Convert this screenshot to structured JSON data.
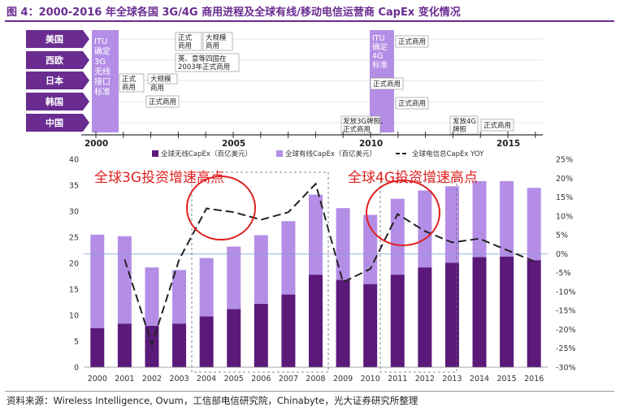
{
  "figure": {
    "title": "图 4：2000-2016 年全球各国 3G/4G 商用进程及全球有线/移动电信运营商 CapEx 变化情况",
    "source": "资料来源：Wireless Intelligence, Ovum，工信部电信研究院，Chinabyte，光大证券研究所整理"
  },
  "timeline": {
    "countries": [
      "美国",
      "西欧",
      "日本",
      "韩国",
      "中国"
    ],
    "year_labels": [
      "2000",
      "2005",
      "2010",
      "2015"
    ],
    "itu_3g": [
      "ITU",
      "确定",
      "3G",
      "无线",
      "接口",
      "标准"
    ],
    "itu_4g": [
      "ITU",
      "确定",
      "4G",
      "标准"
    ],
    "events_3g": {
      "us_a": [
        "正式",
        "商用"
      ],
      "us_b": [
        "大规模",
        "商用"
      ],
      "eu": [
        "英、意等四国在",
        "2003年正式商用"
      ],
      "jp_a": [
        "正式",
        "商用"
      ],
      "jp_b": "大规模",
      "jp_b2": "商用",
      "kr": "正式商用",
      "cn": [
        "发放3G牌照、",
        "正式商用"
      ]
    },
    "events_4g": {
      "us": "正式商用",
      "jp": "正式商用",
      "kr": "正式商用",
      "cn_license": [
        "发放4G",
        "牌照"
      ],
      "cn": "正式商用"
    }
  },
  "annotations": {
    "label_3g": "全球3G投资增速高点",
    "label_4g": "全球4G投资增速高点"
  },
  "colors": {
    "wireless": "#5b1a7a",
    "wired": "#b48ee6",
    "yoy_line": "#222222",
    "title_purple": "#6a2c91",
    "annotation": "#e02020"
  },
  "chart_data": {
    "type": "bar",
    "stacked": true,
    "categories": [
      "2000",
      "2001",
      "2002",
      "2003",
      "2004",
      "2005",
      "2006",
      "2007",
      "2008",
      "2009",
      "2010",
      "2011",
      "2012",
      "2013",
      "2014",
      "2015",
      "2016"
    ],
    "series": [
      {
        "name": "全球无线CapEx（百亿美元）",
        "values": [
          7.5,
          8.4,
          8.0,
          8.4,
          9.8,
          11.2,
          12.2,
          14.0,
          17.8,
          16.8,
          16.0,
          17.8,
          19.2,
          20.1,
          21.2,
          21.3,
          20.6
        ]
      },
      {
        "name": "全球有线CapEx（百亿美元）",
        "values": [
          18.0,
          16.8,
          11.2,
          10.3,
          11.2,
          12.0,
          13.2,
          14.1,
          15.4,
          13.8,
          13.3,
          14.6,
          14.8,
          14.7,
          14.6,
          14.5,
          13.9
        ]
      },
      {
        "name": "全球电信总CapEx YOY",
        "axis": "right",
        "unit": "%",
        "values": [
          null,
          -1.5,
          -24.0,
          -1.5,
          12.0,
          11.0,
          9.0,
          11.0,
          18.5,
          -7.5,
          -4.0,
          10.5,
          6.0,
          3.0,
          4.0,
          1.0,
          -2.0
        ]
      }
    ],
    "ylim_left": [
      0,
      40
    ],
    "yticks_left": [
      "0",
      "5",
      "10",
      "15",
      "20",
      "25",
      "30",
      "35",
      "40"
    ],
    "ylim_right": [
      -30,
      25
    ],
    "yticks_right": [
      "-30%",
      "-25%",
      "-20%",
      "-15%",
      "-10%",
      "-5%",
      "0%",
      "5%",
      "10%",
      "15%",
      "20%",
      "25%"
    ],
    "legend_position": "top",
    "grid": false
  }
}
